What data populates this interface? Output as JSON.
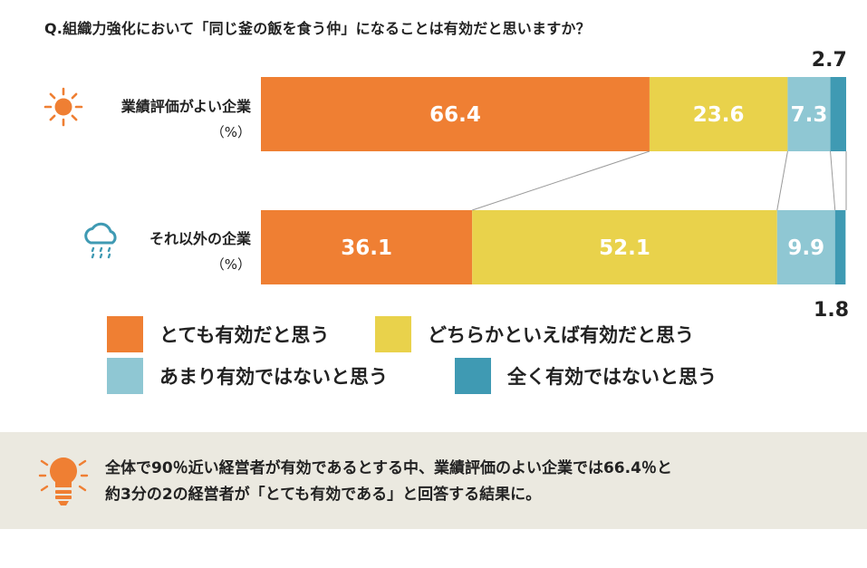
{
  "question": "Q.組織力強化において「同じ釜の飯を食う仲」になることは有効だと思いますか？",
  "colors": {
    "very_effective": "#ef7f33",
    "somewhat_effective": "#e9d24b",
    "not_very_effective": "#8fc7d3",
    "not_at_all_effective": "#3f9ab3",
    "note_background": "#ebe9e0"
  },
  "icons": {
    "good_company": "sun-icon",
    "other_company": "rain-cloud-icon",
    "note": "light-bulb-icon"
  },
  "chart_data": {
    "type": "bar",
    "orientation": "horizontal-stacked-100",
    "categories": [
      "業績評価がよい企業",
      "それ以外の企業"
    ],
    "category_units": [
      "（%）",
      "（%）"
    ],
    "series": [
      {
        "name": "とても有効だと思う",
        "values": [
          66.4,
          36.1
        ]
      },
      {
        "name": "どちらかといえば有効だと思う",
        "values": [
          23.6,
          52.1
        ]
      },
      {
        "name": "あまり有効ではないと思う",
        "values": [
          7.3,
          9.9
        ]
      },
      {
        "name": "全く有効ではないと思う",
        "values": [
          2.7,
          1.8
        ]
      }
    ],
    "value_labels": [
      [
        "66.4",
        "23.6",
        "7.3",
        "2.7"
      ],
      [
        "36.1",
        "52.1",
        "9.9",
        "1.8"
      ]
    ],
    "xlim": [
      0,
      100
    ],
    "grid": false,
    "legend_position": "bottom"
  },
  "note": {
    "line1": "全体で90％近い経営者が有効であるとする中、業績評価のよい企業では66.4％と",
    "line2": "約3分の2の経営者が「とても有効である」と回答する結果に。"
  }
}
